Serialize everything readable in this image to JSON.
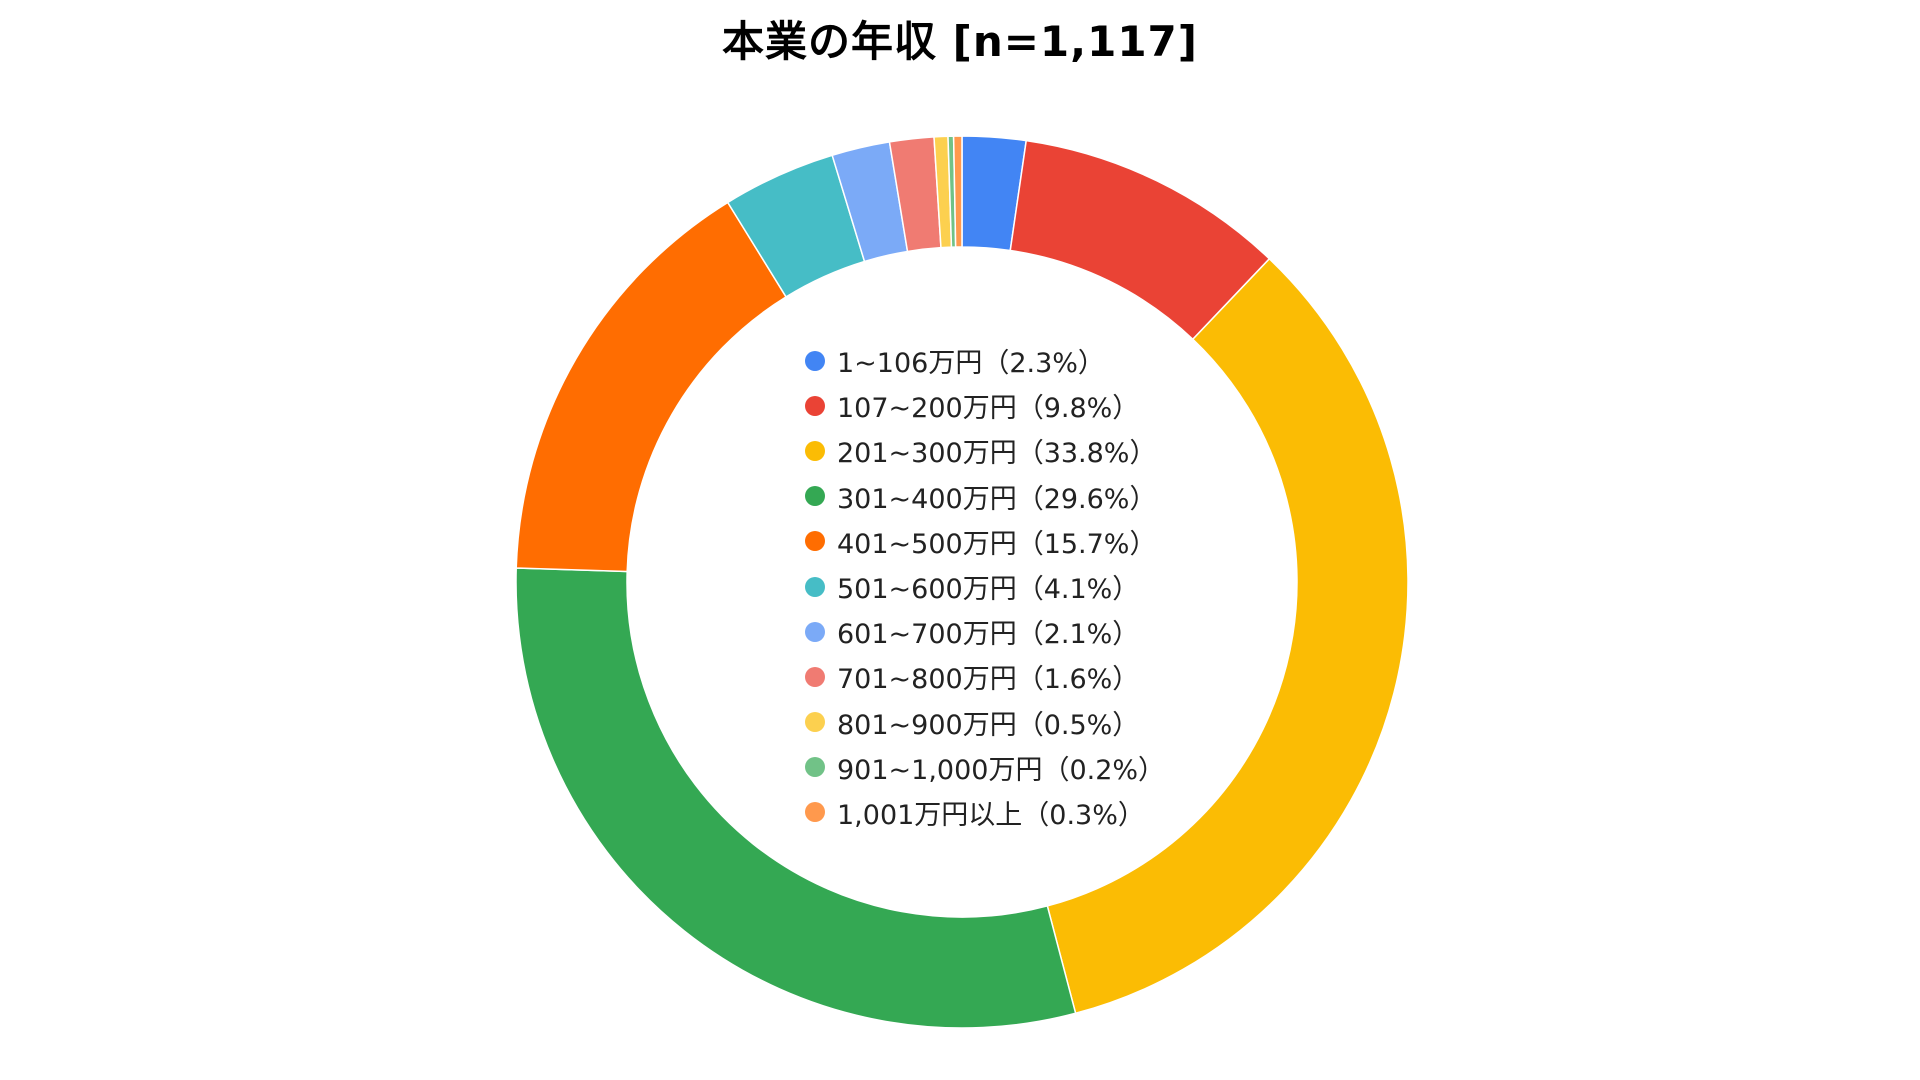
{
  "chart_data": {
    "type": "pie",
    "title": "本業の年収  [n=1,117]",
    "donut": true,
    "start_angle_deg": 0,
    "direction": "clockwise",
    "legend_position": "center",
    "slices": [
      {
        "label": "1~106万円（2.3%）",
        "category": "1~106万円",
        "value": 2.3,
        "color": "#4285F4"
      },
      {
        "label": "107~200万円（9.8%）",
        "category": "107~200万円",
        "value": 9.8,
        "color": "#EA4335"
      },
      {
        "label": "201~300万円（33.8%）",
        "category": "201~300万円",
        "value": 33.8,
        "color": "#FBBC04"
      },
      {
        "label": "301~400万円（29.6%）",
        "category": "301~400万円",
        "value": 29.6,
        "color": "#34A853"
      },
      {
        "label": "401~500万円（15.7%）",
        "category": "401~500万円",
        "value": 15.7,
        "color": "#FF6D01"
      },
      {
        "label": "501~600万円（4.1%）",
        "category": "501~600万円",
        "value": 4.1,
        "color": "#46BDC6"
      },
      {
        "label": "601~700万円（2.1%）",
        "category": "601~700万円",
        "value": 2.1,
        "color": "#7BAAF7"
      },
      {
        "label": "701~800万円（1.6%）",
        "category": "701~800万円",
        "value": 1.6,
        "color": "#F07B72"
      },
      {
        "label": "801~900万円（0.5%）",
        "category": "801~900万円",
        "value": 0.5,
        "color": "#FCD04F"
      },
      {
        "label": "901~1,000万円（0.2%）",
        "category": "901~1,000万円",
        "value": 0.2,
        "color": "#71C287"
      },
      {
        "label": "1,001万円以上（0.3%）",
        "category": "1,001万円以上",
        "value": 0.3,
        "color": "#FF994D"
      }
    ]
  }
}
